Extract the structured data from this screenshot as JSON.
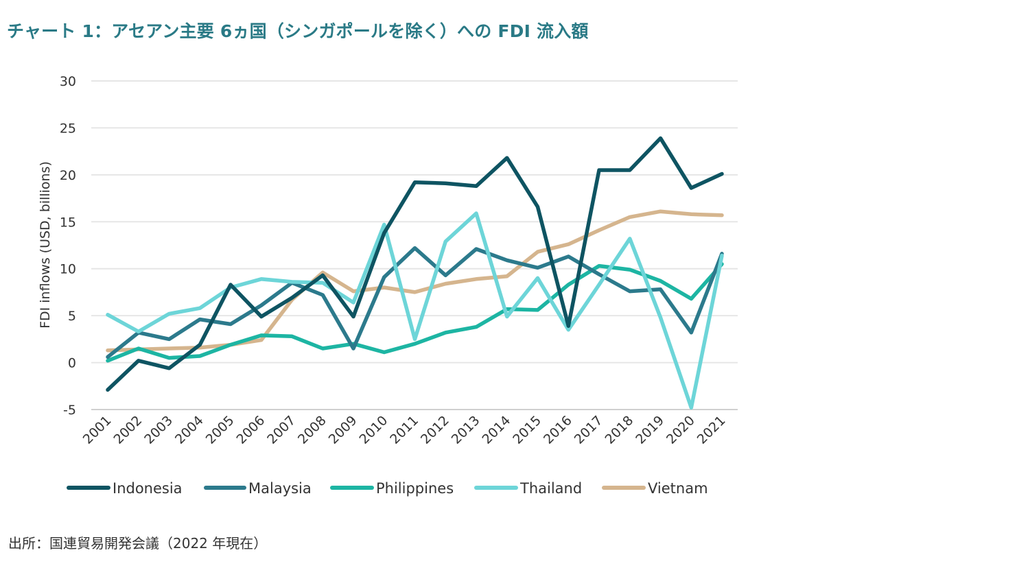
{
  "title": "チャート 1：アセアン主要 6ヵ国（シンガポールを除く）への FDI 流入額",
  "source": "出所：国連貿易開発会議（2022 年現在）",
  "chart_data": {
    "type": "line",
    "title": "チャート 1：アセアン主要 6ヵ国（シンガポールを除く）への FDI 流入額",
    "xlabel": "",
    "ylabel": "FDI inflows (USD, billions)",
    "ylim": [
      -5,
      30
    ],
    "yticks": [
      -5,
      0,
      5,
      10,
      15,
      20,
      25,
      30
    ],
    "grid": true,
    "legend_position": "bottom",
    "x": [
      "2001",
      "2002",
      "2003",
      "2004",
      "2005",
      "2006",
      "2007",
      "2008",
      "2009",
      "2010",
      "2011",
      "2012",
      "2013",
      "2014",
      "2015",
      "2016",
      "2017",
      "2018",
      "2019",
      "2020",
      "2021"
    ],
    "series": [
      {
        "name": "Indonesia",
        "color": "#0e5462",
        "values": [
          -2.9,
          0.2,
          -0.6,
          1.9,
          8.3,
          4.9,
          6.9,
          9.3,
          4.9,
          13.8,
          19.2,
          19.1,
          18.8,
          21.8,
          16.6,
          3.9,
          20.5,
          20.5,
          23.9,
          18.6,
          20.1
        ]
      },
      {
        "name": "Malaysia",
        "color": "#2c7a8c",
        "values": [
          0.6,
          3.2,
          2.5,
          4.6,
          4.1,
          6.1,
          8.5,
          7.2,
          1.5,
          9.1,
          12.2,
          9.3,
          12.1,
          10.9,
          10.1,
          11.3,
          9.4,
          7.6,
          7.8,
          3.2,
          11.6
        ]
      },
      {
        "name": "Philippines",
        "color": "#1db5a3",
        "values": [
          0.2,
          1.5,
          0.5,
          0.7,
          1.9,
          2.9,
          2.8,
          1.5,
          2.0,
          1.1,
          2.0,
          3.2,
          3.8,
          5.7,
          5.6,
          8.3,
          10.3,
          9.9,
          8.7,
          6.8,
          10.5
        ]
      },
      {
        "name": "Thailand",
        "color": "#6dd5d8",
        "values": [
          5.1,
          3.3,
          5.2,
          5.8,
          8.0,
          8.9,
          8.6,
          8.5,
          6.4,
          14.7,
          2.5,
          12.9,
          15.9,
          4.9,
          9.0,
          3.5,
          8.3,
          13.2,
          4.8,
          -4.8,
          11.4
        ]
      },
      {
        "name": "Vietnam",
        "color": "#d5b58e",
        "values": [
          1.3,
          1.4,
          1.5,
          1.6,
          1.9,
          2.4,
          6.7,
          9.6,
          7.6,
          8.0,
          7.5,
          8.4,
          8.9,
          9.2,
          11.8,
          12.6,
          14.1,
          15.5,
          16.1,
          15.8,
          15.7
        ]
      }
    ]
  }
}
